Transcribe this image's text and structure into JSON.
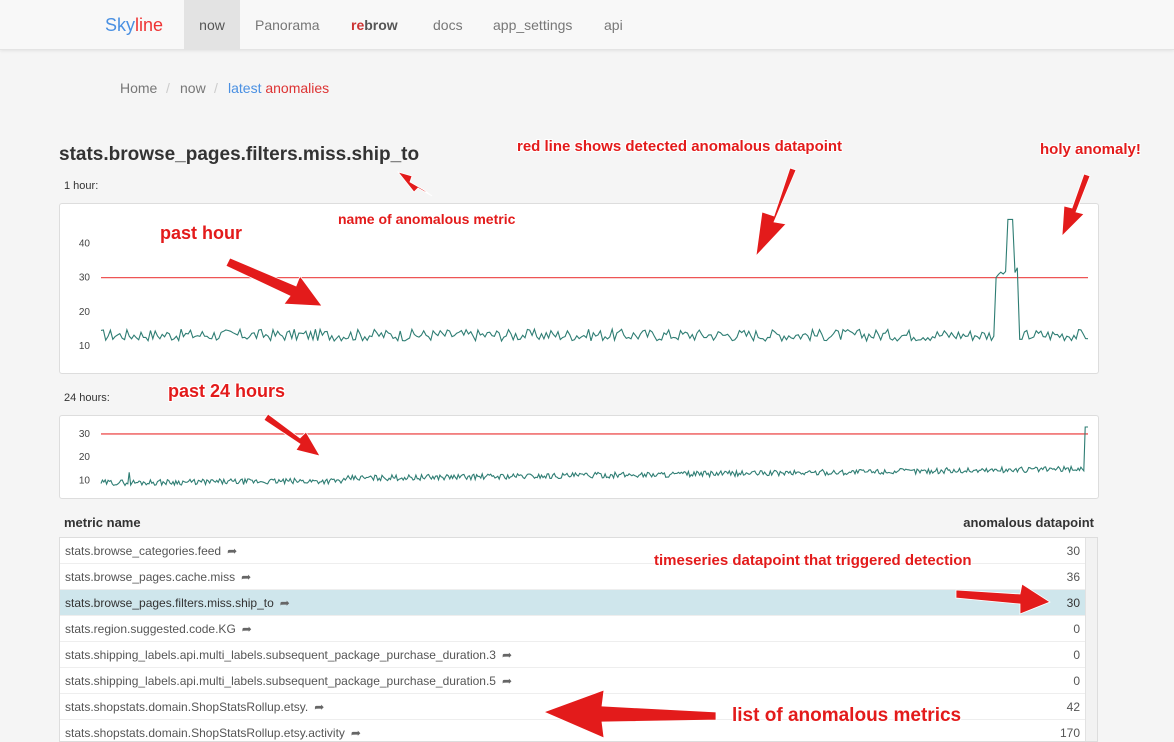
{
  "nav": {
    "brand_a": "Sky",
    "brand_b": "line",
    "items": [
      "now",
      "Panorama",
      "rebrow",
      "docs",
      "app_settings",
      "api"
    ],
    "rebrow_a": "re",
    "rebrow_b": "brow"
  },
  "breadcrumb": {
    "home": "Home",
    "sep": "/",
    "now": "now",
    "current_a": "latest",
    "current_b": "anomalies"
  },
  "metric_title": "stats.browse_pages.filters.miss.ship_to",
  "chart_1h": {
    "label": "1 hour:",
    "yticks": [
      "40",
      "30",
      "20",
      "10"
    ]
  },
  "chart_24h": {
    "label": "24 hours:",
    "yticks": [
      "30",
      "20",
      "10"
    ]
  },
  "chart_data": [
    {
      "type": "line",
      "title": "1 hour:",
      "ylim": [
        8,
        48
      ],
      "threshold": 30,
      "threshold_color": "#e55",
      "line_color": "#2e7d73",
      "spike": {
        "position": "near end",
        "peak": 47
      },
      "baseline_range": [
        10,
        15
      ]
    },
    {
      "type": "line",
      "title": "24 hours:",
      "ylim": [
        5,
        36
      ],
      "threshold": 30,
      "threshold_color": "#e55",
      "line_color": "#2e7d73",
      "spike": {
        "position": "end",
        "peak": 33
      },
      "baseline_range": [
        8,
        16
      ]
    }
  ],
  "table": {
    "col_name": "metric name",
    "col_value": "anomalous datapoint",
    "share_icon": "share-arrow-icon",
    "share_glyph": "➦",
    "rows": [
      {
        "name": "stats.browse_categories.feed",
        "value": "30"
      },
      {
        "name": "stats.browse_pages.cache.miss",
        "value": "36"
      },
      {
        "name": "stats.browse_pages.filters.miss.ship_to",
        "value": "30",
        "selected": true
      },
      {
        "name": "stats.region.suggested.code.KG",
        "value": "0"
      },
      {
        "name": "stats.shipping_labels.api.multi_labels.subsequent_package_purchase_duration.3",
        "value": "0"
      },
      {
        "name": "stats.shipping_labels.api.multi_labels.subsequent_package_purchase_duration.5",
        "value": "0"
      },
      {
        "name": "stats.shopstats.domain.ShopStatsRollup.etsy.",
        "value": "42"
      },
      {
        "name": "stats.shopstats.domain.ShopStatsRollup.etsy.activity",
        "value": "170"
      }
    ]
  },
  "annotations": {
    "red_line": "red line shows detected anomalous datapoint",
    "holy": "holy anomaly!",
    "past_hour": "past hour",
    "name_metric": "name of anomalous metric",
    "past_24": "past 24 hours",
    "timeseries": "timeseries datapoint that triggered detection",
    "list": "list of anomalous metrics"
  },
  "colors": {
    "accent_blue": "#4a90e2",
    "accent_red": "#e33",
    "annotation_red": "#e31b1b",
    "selected_row": "#cfe6ec"
  }
}
